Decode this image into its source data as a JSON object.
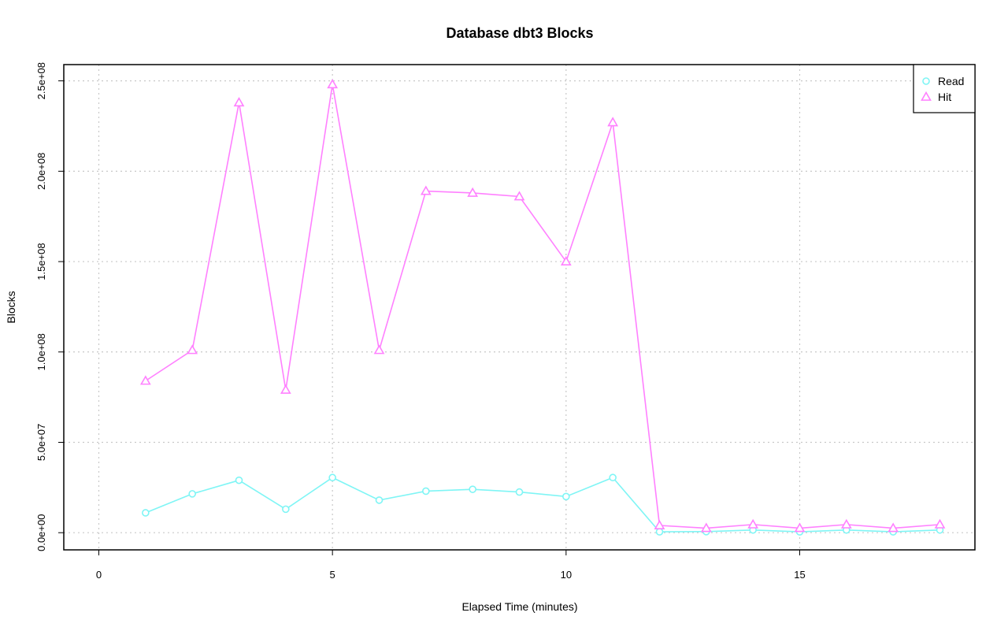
{
  "chart_data": {
    "type": "line",
    "title": "Database dbt3 Blocks",
    "xlabel": "Elapsed Time (minutes)",
    "ylabel": "Blocks",
    "xlim": [
      -0.75,
      18.75
    ],
    "ylim": [
      -9500000,
      259000000
    ],
    "x_ticks": [
      0,
      5,
      10,
      15
    ],
    "x_tick_labels": [
      "0",
      "5",
      "10",
      "15"
    ],
    "y_ticks": [
      0,
      50000000,
      100000000,
      150000000,
      200000000,
      250000000
    ],
    "y_tick_labels": [
      "0.0e+00",
      "5.0e+07",
      "1.0e+08",
      "1.5e+08",
      "2.0e+08",
      "2.5e+08"
    ],
    "grid": true,
    "legend_position": "top-right",
    "x": [
      1,
      2,
      3,
      4,
      5,
      6,
      7,
      8,
      9,
      10,
      11,
      12,
      13,
      14,
      15,
      16,
      17,
      18
    ],
    "series": [
      {
        "name": "Read",
        "color": "#7ff5f5",
        "marker": "circle",
        "values": [
          11000000,
          21500000,
          29000000,
          13000000,
          30500000,
          18000000,
          23000000,
          24000000,
          22500000,
          20000000,
          30500000,
          500000,
          600000,
          1500000,
          500000,
          1500000,
          500000,
          1500000
        ]
      },
      {
        "name": "Hit",
        "color": "#ff80ff",
        "marker": "triangle",
        "values": [
          84000000,
          101000000,
          238000000,
          79000000,
          248000000,
          101000000,
          189000000,
          188000000,
          186000000,
          150000000,
          227000000,
          4000000,
          2500000,
          4500000,
          2500000,
          4500000,
          2500000,
          4500000
        ]
      }
    ]
  }
}
